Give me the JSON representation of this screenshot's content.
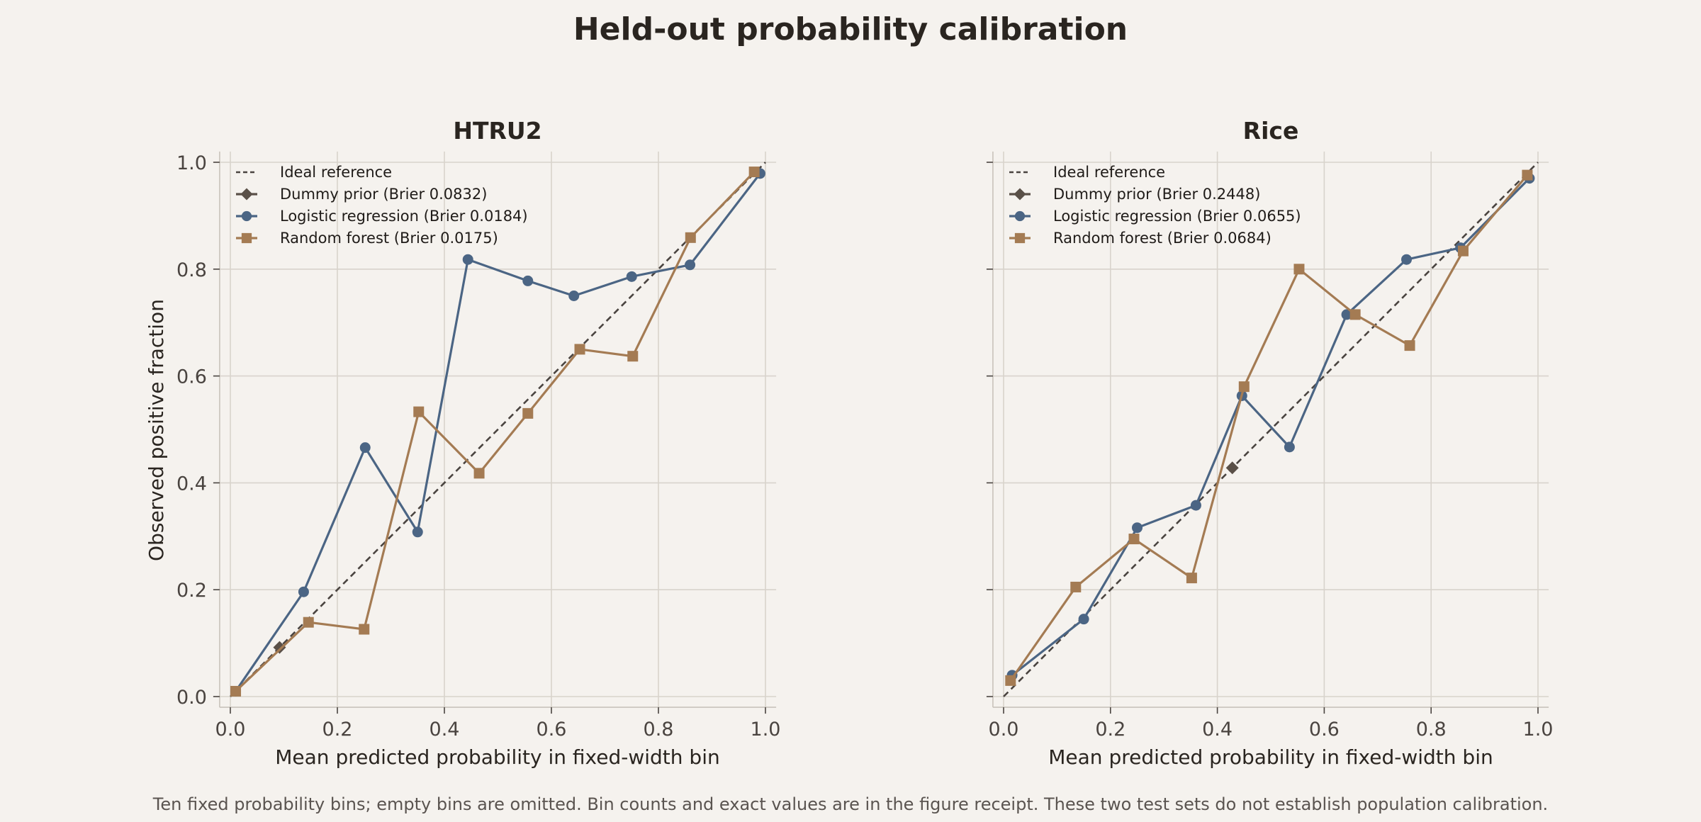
{
  "title": "Held-out probability calibration",
  "caption": "Ten fixed probability bins; empty bins are omitted. Bin counts and exact values are in the figure receipt. These two test sets do not establish population calibration.",
  "colors": {
    "background": "#f5f2ee",
    "ideal": "#4a4440",
    "dummy": "#5a5048",
    "logistic": "#4b6584",
    "forest": "#a47b53"
  },
  "chart_data": [
    {
      "type": "line",
      "title": "HTRU2",
      "xlabel": "Mean predicted probability in fixed-width bin",
      "ylabel": "Observed positive fraction",
      "xlim": [
        0,
        1
      ],
      "ylim": [
        0,
        1
      ],
      "xticks": [
        "0.0",
        "0.2",
        "0.4",
        "0.6",
        "0.8",
        "1.0"
      ],
      "yticks": [
        "0.0",
        "0.2",
        "0.4",
        "0.6",
        "0.8",
        "1.0"
      ],
      "grid": true,
      "legend_position": "top-left",
      "series": [
        {
          "name": "Ideal reference",
          "marker": "none",
          "dashed": true,
          "x": [
            0,
            1
          ],
          "y": [
            0,
            1
          ]
        },
        {
          "name": "Dummy prior (Brier 0.0832)",
          "marker": "diamond",
          "x": [
            0.092
          ],
          "y": [
            0.092
          ]
        },
        {
          "name": "Logistic regression (Brier 0.0184)",
          "marker": "circle",
          "x": [
            0.01,
            0.137,
            0.252,
            0.35,
            0.444,
            0.556,
            0.642,
            0.75,
            0.859,
            0.99
          ],
          "y": [
            0.01,
            0.196,
            0.466,
            0.308,
            0.818,
            0.778,
            0.75,
            0.786,
            0.808,
            0.979
          ]
        },
        {
          "name": "Random forest (Brier 0.0175)",
          "marker": "square",
          "x": [
            0.01,
            0.146,
            0.25,
            0.352,
            0.465,
            0.556,
            0.653,
            0.752,
            0.86,
            0.979
          ],
          "y": [
            0.01,
            0.139,
            0.126,
            0.533,
            0.418,
            0.53,
            0.65,
            0.637,
            0.859,
            0.982
          ]
        }
      ]
    },
    {
      "type": "line",
      "title": "Rice",
      "xlabel": "Mean predicted probability in fixed-width bin",
      "ylabel": "",
      "xlim": [
        0,
        1
      ],
      "ylim": [
        0,
        1
      ],
      "xticks": [
        "0.0",
        "0.2",
        "0.4",
        "0.6",
        "0.8",
        "1.0"
      ],
      "yticks": [],
      "grid": true,
      "legend_position": "top-left",
      "series": [
        {
          "name": "Ideal reference",
          "marker": "none",
          "dashed": true,
          "x": [
            0,
            1
          ],
          "y": [
            0,
            1
          ]
        },
        {
          "name": "Dummy prior (Brier 0.2448)",
          "marker": "diamond",
          "x": [
            0.428
          ],
          "y": [
            0.428
          ]
        },
        {
          "name": "Logistic regression (Brier 0.0655)",
          "marker": "circle",
          "x": [
            0.016,
            0.15,
            0.25,
            0.36,
            0.446,
            0.535,
            0.642,
            0.754,
            0.855,
            0.984
          ],
          "y": [
            0.04,
            0.145,
            0.316,
            0.358,
            0.563,
            0.467,
            0.715,
            0.818,
            0.84,
            0.97
          ]
        },
        {
          "name": "Random forest (Brier 0.0684)",
          "marker": "square",
          "x": [
            0.013,
            0.135,
            0.244,
            0.352,
            0.45,
            0.553,
            0.658,
            0.76,
            0.86,
            0.98
          ],
          "y": [
            0.03,
            0.205,
            0.295,
            0.222,
            0.58,
            0.8,
            0.715,
            0.657,
            0.834,
            0.976
          ]
        }
      ]
    }
  ]
}
